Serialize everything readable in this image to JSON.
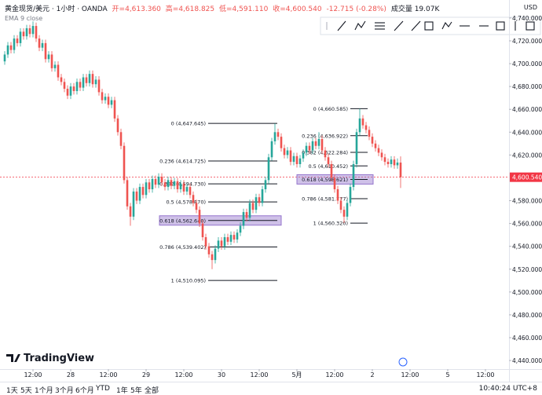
{
  "header": {
    "symbol": "黄金现货/美元 · 1小时 · OANDA",
    "open": "开=4,613.360",
    "high": "高=4,618.825",
    "low": "低=4,591.110",
    "close": "收=4,600.540",
    "change": "-12.715 (-0.28%)",
    "volume": "成交量 19.07K",
    "indicator": "EMA 9 close",
    "currency": "USD",
    "logo": "TradingView"
  },
  "chart_data": {
    "type": "candlestick",
    "up_color": "#26a69a",
    "down_color": "#ef5350",
    "xlim": [
      -1.5,
      160.5
    ],
    "xticks": [
      {
        "value": 9,
        "label": "12:00"
      },
      {
        "value": 21,
        "label": "28"
      },
      {
        "value": 33,
        "label": "12:00"
      },
      {
        "value": 45,
        "label": "29"
      },
      {
        "value": 57,
        "label": "12:00"
      },
      {
        "value": 69,
        "label": "30"
      },
      {
        "value": 81,
        "label": "12:00"
      },
      {
        "value": 93,
        "label": "5月"
      },
      {
        "value": 105,
        "label": "12:00"
      },
      {
        "value": 117,
        "label": "2"
      },
      {
        "value": 129,
        "label": "12:00"
      },
      {
        "value": 141,
        "label": "5"
      },
      {
        "value": 153,
        "label": "12:00"
      }
    ],
    "ylim": [
      4431.1,
      4742.0
    ],
    "yticks": [
      {
        "value": 4440,
        "label": "4,440.000"
      },
      {
        "value": 4460,
        "label": "4,460.000"
      },
      {
        "value": 4480,
        "label": "4,480.000"
      },
      {
        "value": 4500,
        "label": "4,500.000"
      },
      {
        "value": 4520,
        "label": "4,520.000"
      },
      {
        "value": 4540,
        "label": "4,540.000"
      },
      {
        "value": 4560,
        "label": "4,560.000"
      },
      {
        "value": 4580,
        "label": "4,580.000"
      },
      {
        "value": 4620,
        "label": "4,620.000"
      },
      {
        "value": 4640,
        "label": "4,640.000"
      },
      {
        "value": 4660,
        "label": "4,660.000"
      },
      {
        "value": 4680,
        "label": "4,680.000"
      },
      {
        "value": 4700,
        "label": "4,700.000"
      },
      {
        "value": 4720,
        "label": "4,720.000"
      },
      {
        "value": 4740,
        "label": "4,740.000"
      }
    ],
    "open": [
      4702,
      4708,
      4716,
      4712,
      4722,
      4718,
      4728,
      4724,
      4731,
      4726,
      4733,
      4722,
      4714,
      4718,
      4704,
      4708,
      4696,
      4699,
      4688,
      4684,
      4678,
      4672,
      4680,
      4676,
      4684,
      4679,
      4688,
      4683,
      4691,
      4682,
      4686,
      4675,
      4668,
      4671,
      4664,
      4668,
      4652,
      4640,
      4628,
      4598,
      4575,
      4566,
      4588,
      4580,
      4592,
      4585,
      4596,
      4590,
      4599,
      4594,
      4601,
      4596,
      4592,
      4598,
      4593,
      4597,
      4590,
      4595,
      4588,
      4592,
      4585,
      4578,
      4572,
      4560,
      4548,
      4540,
      4533,
      4528,
      4538,
      4545,
      4540,
      4548,
      4544,
      4550,
      4546,
      4552,
      4558,
      4570,
      4565,
      4578,
      4572,
      4583,
      4578,
      4590,
      4598,
      4618,
      4632,
      4640,
      4636,
      4626,
      4620,
      4624,
      4614,
      4619,
      4612,
      4617,
      4622,
      4628,
      4624,
      4632,
      4628,
      4634,
      4624,
      4618,
      4612,
      4600,
      4590,
      4580,
      4572,
      4566,
      4578,
      4592,
      4612,
      4640,
      4652,
      4646,
      4642,
      4636,
      4630,
      4626,
      4622,
      4618,
      4614,
      4612,
      4616,
      4611,
      4613.36
    ],
    "high": [
      4711,
      4719,
      4719,
      4725,
      4725,
      4731,
      4731,
      4734,
      4734,
      4737,
      4736,
      4725,
      4721,
      4721,
      4711,
      4711,
      4702,
      4702,
      4691,
      4687,
      4681,
      4683,
      4683,
      4687,
      4687,
      4691,
      4691,
      4694,
      4694,
      4689,
      4689,
      4678,
      4674,
      4674,
      4671,
      4671,
      4655,
      4643,
      4631,
      4601,
      4578,
      4591,
      4591,
      4595,
      4595,
      4599,
      4599,
      4602,
      4602,
      4604,
      4604,
      4599,
      4601,
      4601,
      4600,
      4600,
      4598,
      4598,
      4595,
      4595,
      4588,
      4581,
      4575,
      4563,
      4551,
      4543,
      4536,
      4541,
      4548,
      4548,
      4551,
      4551,
      4553,
      4553,
      4555,
      4561,
      4573,
      4573,
      4581,
      4581,
      4586,
      4586,
      4593,
      4601,
      4621,
      4635,
      4647.6,
      4643,
      4639,
      4629,
      4627,
      4627,
      4622,
      4622,
      4620,
      4625,
      4631,
      4631,
      4635,
      4635,
      4640,
      4637,
      4627,
      4621,
      4615,
      4603,
      4593,
      4583,
      4575,
      4581,
      4595,
      4615,
      4643,
      4660.6,
      4655,
      4649,
      4645,
      4639,
      4633,
      4629,
      4625,
      4621,
      4617,
      4619,
      4619,
      4617,
      4618.825
    ],
    "low": [
      4699,
      4705,
      4709,
      4709,
      4715,
      4715,
      4721,
      4721,
      4723,
      4723,
      4719,
      4711,
      4711,
      4701,
      4701,
      4693,
      4693,
      4685,
      4681,
      4675,
      4669,
      4669,
      4673,
      4673,
      4676,
      4676,
      4680,
      4680,
      4679,
      4679,
      4672,
      4665,
      4665,
      4661,
      4661,
      4649,
      4637,
      4625,
      4595,
      4572,
      4558,
      4563,
      4577,
      4577,
      4582,
      4582,
      4587,
      4587,
      4591,
      4591,
      4593,
      4589,
      4589,
      4590,
      4590,
      4587,
      4587,
      4585,
      4585,
      4582,
      4575,
      4569,
      4557,
      4545,
      4537,
      4530,
      4520,
      4525,
      4535,
      4537,
      4537,
      4541,
      4541,
      4543,
      4543,
      4549,
      4555,
      4562,
      4562,
      4569,
      4569,
      4575,
      4575,
      4587,
      4595,
      4615,
      4629,
      4633,
      4623,
      4617,
      4617,
      4611,
      4611,
      4609,
      4609,
      4614,
      4619,
      4621,
      4621,
      4625,
      4625,
      4621,
      4615,
      4609,
      4597,
      4587,
      4577,
      4569,
      4560.3,
      4563,
      4575,
      4589,
      4609,
      4637,
      4643,
      4639,
      4633,
      4627,
      4623,
      4619,
      4615,
      4611,
      4609,
      4609,
      4608,
      4608,
      4591.11
    ],
    "close": [
      4708,
      4716,
      4712,
      4722,
      4718,
      4728,
      4724,
      4731,
      4726,
      4733,
      4722,
      4714,
      4718,
      4704,
      4708,
      4696,
      4699,
      4688,
      4684,
      4678,
      4672,
      4680,
      4676,
      4684,
      4679,
      4688,
      4683,
      4691,
      4682,
      4686,
      4675,
      4668,
      4671,
      4664,
      4668,
      4652,
      4640,
      4628,
      4598,
      4575,
      4566,
      4588,
      4580,
      4592,
      4585,
      4596,
      4590,
      4599,
      4594,
      4601,
      4596,
      4592,
      4598,
      4593,
      4597,
      4590,
      4595,
      4588,
      4592,
      4585,
      4578,
      4572,
      4560,
      4548,
      4540,
      4533,
      4528,
      4538,
      4545,
      4540,
      4548,
      4544,
      4550,
      4546,
      4552,
      4558,
      4570,
      4565,
      4578,
      4572,
      4583,
      4578,
      4590,
      4598,
      4618,
      4632,
      4640,
      4636,
      4626,
      4620,
      4624,
      4614,
      4619,
      4612,
      4617,
      4622,
      4628,
      4624,
      4632,
      4628,
      4634,
      4624,
      4618,
      4612,
      4600,
      4590,
      4580,
      4572,
      4566,
      4578,
      4592,
      4612,
      4640,
      4652,
      4646,
      4642,
      4636,
      4630,
      4626,
      4622,
      4618,
      4614,
      4612,
      4616,
      4611,
      4613.36,
      4600.54
    ],
    "price_line": {
      "value": 4600.54,
      "label": "4,600.540",
      "color": "#f23645"
    }
  },
  "drawings": [
    {
      "levels": [
        {
          "price": 4647.645,
          "label": "0 (4,647.645)"
        },
        {
          "price": 4614.725,
          "label": "0.236 (4,614.725)"
        },
        {
          "price": 4594.73,
          "label": "0.382 (4,594.730)"
        },
        {
          "price": 4578.87,
          "label": "0.5 (4,578.870)"
        },
        {
          "price": 4562.64,
          "label": "0.618 (4,562.640)",
          "highlighted": true
        },
        {
          "price": 4539.402,
          "label": "0.786 (4,539.402)"
        },
        {
          "price": 4510.095,
          "label": "1 (4,510.095)"
        }
      ]
    },
    {
      "levels": [
        {
          "price": 4660.585,
          "label": "0 (4,660.585)"
        },
        {
          "price": 4636.922,
          "label": "0.236 (4,636.922)"
        },
        {
          "price": 4622.284,
          "label": "0.382 (4,622.284)"
        },
        {
          "price": 4610.452,
          "label": "0.5 (4,610.452)"
        },
        {
          "price": 4598.621,
          "label": "0.618 (4,598.621)",
          "highlighted": true
        },
        {
          "price": 4581.777,
          "label": "0.786 (4,581.777)"
        },
        {
          "price": 4560.32,
          "label": "1 (4,560.320)"
        }
      ]
    }
  ],
  "highlight_color": "#9575cd",
  "footer": {
    "ranges": [
      "1天",
      "5天",
      "1个月",
      "3个月",
      "6个月",
      "YTD",
      "1年",
      "5年",
      "全部"
    ],
    "time": "10:40:24 UTC+8"
  }
}
